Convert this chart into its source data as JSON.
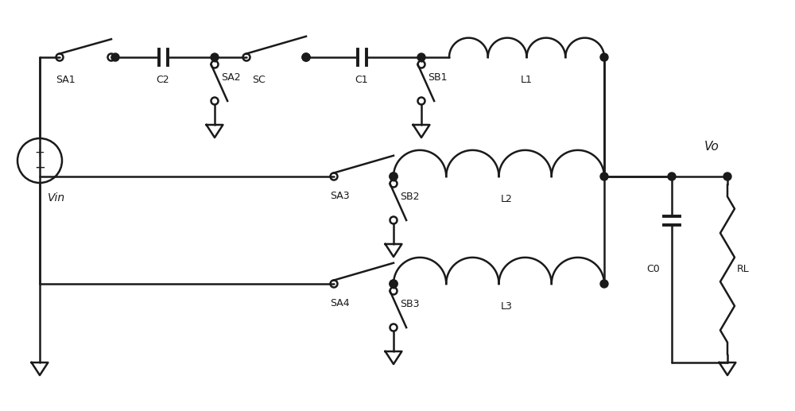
{
  "bg_color": "#ffffff",
  "lc": "#1a1a1a",
  "lw": 1.8,
  "fig_w": 10.0,
  "fig_h": 5.17,
  "xlim": [
    0,
    100
  ],
  "ylim": [
    0,
    51.7
  ]
}
